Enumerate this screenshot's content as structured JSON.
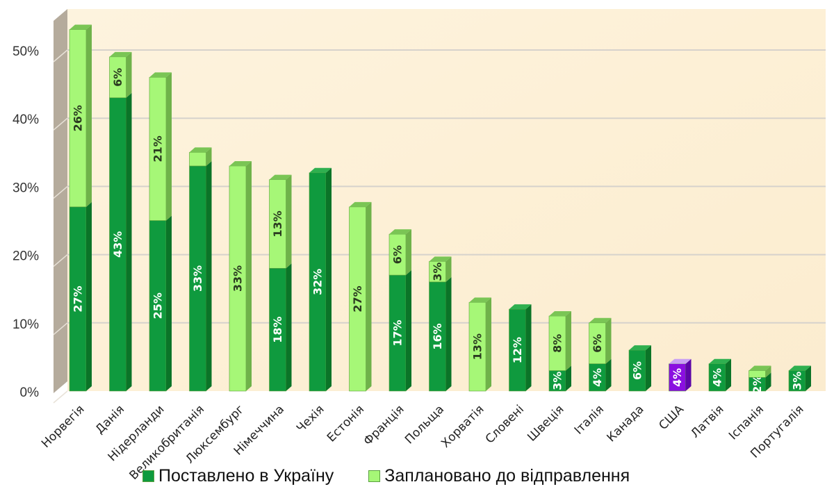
{
  "chart_data": {
    "type": "bar",
    "stacked": true,
    "three_d": true,
    "title": "",
    "xlabel": "",
    "ylabel": "",
    "ylim": [
      0,
      0.55
    ],
    "yticks": [
      "0%",
      "10%",
      "20%",
      "30%",
      "40%",
      "50%"
    ],
    "grid": true,
    "legend_position": "bottom",
    "categories": [
      "Норвегія",
      "Данія",
      "Нідерланди",
      "Великобританія",
      "Люксембург",
      "Німеччина",
      "Чехія",
      "Естонія",
      "Франція",
      "Польща",
      "Хорватія",
      "Словені",
      "Швеція",
      "Італія",
      "Канада",
      "США",
      "Латвія",
      "Іспанія",
      "Португалія"
    ],
    "series": [
      {
        "name": "Поставлено в Україну",
        "color": "#0f9a3e",
        "values": [
          27,
          43,
          25,
          33,
          0,
          18,
          32,
          0,
          17,
          16,
          0,
          12,
          3,
          4,
          6,
          4,
          4,
          2,
          3
        ],
        "labels": [
          "27%",
          "43%",
          "25%",
          "33%",
          "",
          "18%",
          "32%",
          "",
          "17%",
          "16%",
          "",
          "12%",
          "3%",
          "4%",
          "6%",
          "4%",
          "4%",
          "2%",
          "3%"
        ]
      },
      {
        "name": "Заплановано до відправлення",
        "color": "#a6f777",
        "values": [
          26,
          6,
          21,
          2,
          33,
          13,
          0,
          27,
          6,
          3,
          13,
          0,
          8,
          6,
          0,
          0,
          0,
          1,
          0
        ],
        "labels": [
          "26%",
          "6%",
          "21%",
          "",
          "33%",
          "13%",
          "",
          "27%",
          "6%",
          "3%",
          "13%",
          "",
          "8%",
          "6%",
          "",
          "",
          "",
          "",
          ""
        ]
      }
    ],
    "highlight": {
      "category": "США",
      "color": "#8a0fe0",
      "top_color": "#c9a0f4"
    }
  },
  "legend": {
    "items": [
      {
        "label": "Поставлено в Україну",
        "color": "#0f9a3e"
      },
      {
        "label": "Заплановано до відправлення",
        "color": "#a6f777"
      }
    ]
  }
}
